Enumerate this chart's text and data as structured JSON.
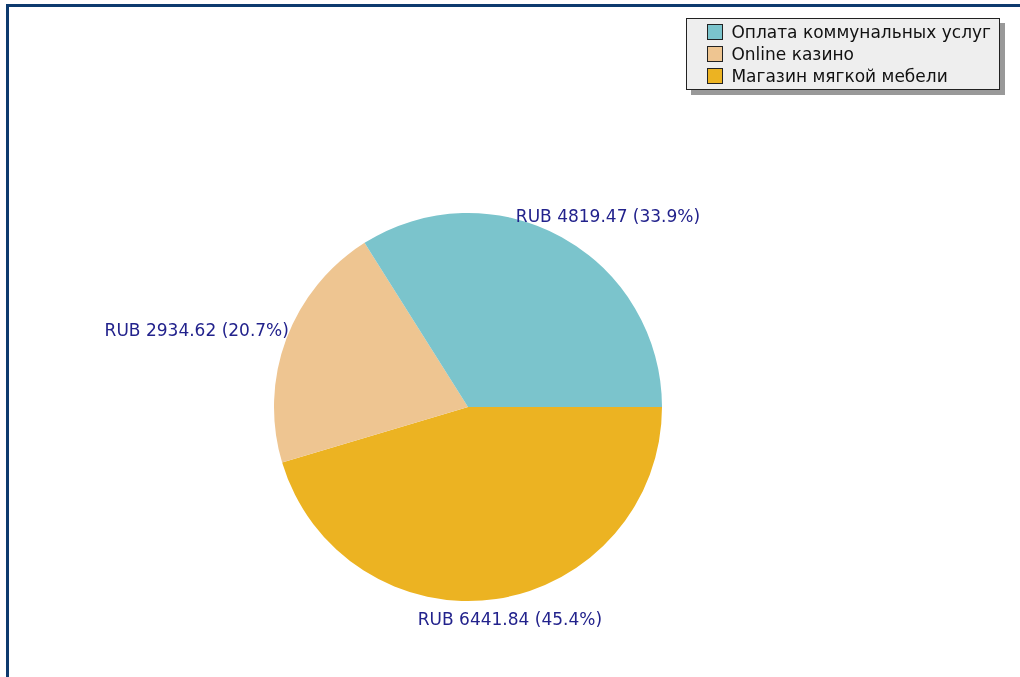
{
  "chart_data": {
    "type": "pie",
    "categories": [
      "Оплата коммунальных услуг",
      "Online казино",
      "Магазин мягкой мебели"
    ],
    "values": [
      4819.47,
      2934.62,
      6441.84
    ],
    "colors": [
      "#7bc4cc",
      "#eec591",
      "#ecb322"
    ],
    "value_labels": [
      "RUB 4819.47 (33.9%)",
      "RUB 2934.62 (20.7%)",
      "RUB 6441.84 (45.4%)"
    ],
    "legend": "top right"
  }
}
